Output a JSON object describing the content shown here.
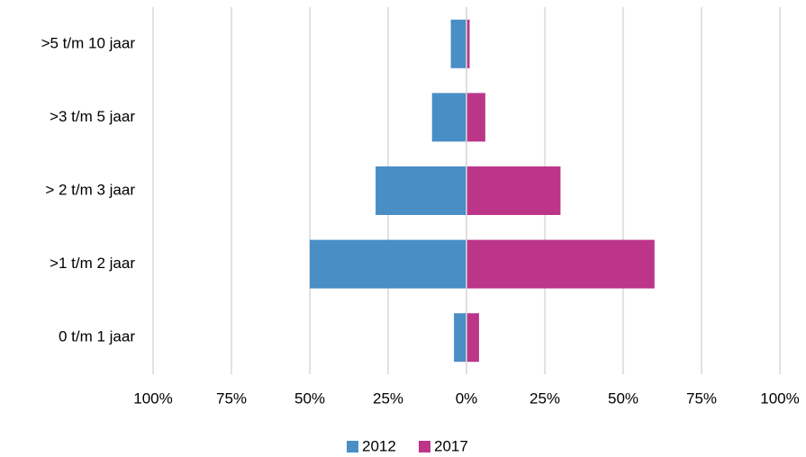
{
  "chart_data": {
    "type": "bar",
    "orientation": "horizontal",
    "categories": [
      ">5 t/m 10 jaar",
      ">3 t/m 5 jaar",
      "> 2 t/m 3 jaar",
      ">1 t/m 2 jaar",
      "0 t/m 1 jaar"
    ],
    "series": [
      {
        "name": "2012",
        "color": "#4a8ec6",
        "values": [
          -5,
          -11,
          -29,
          -50,
          -4
        ]
      },
      {
        "name": "2017",
        "color": "#bc3589",
        "values": [
          1,
          6,
          30,
          60,
          4
        ]
      }
    ],
    "xlim": [
      -100,
      100
    ],
    "xticks": [
      {
        "value": -100,
        "label": "100%"
      },
      {
        "value": -75,
        "label": "75%"
      },
      {
        "value": -50,
        "label": "50%"
      },
      {
        "value": -25,
        "label": "25%"
      },
      {
        "value": 0,
        "label": "0%"
      },
      {
        "value": 25,
        "label": "25%"
      },
      {
        "value": 50,
        "label": "50%"
      },
      {
        "value": 75,
        "label": "75%"
      },
      {
        "value": 100,
        "label": "100%"
      }
    ],
    "grid": true,
    "legend": "bottom"
  }
}
